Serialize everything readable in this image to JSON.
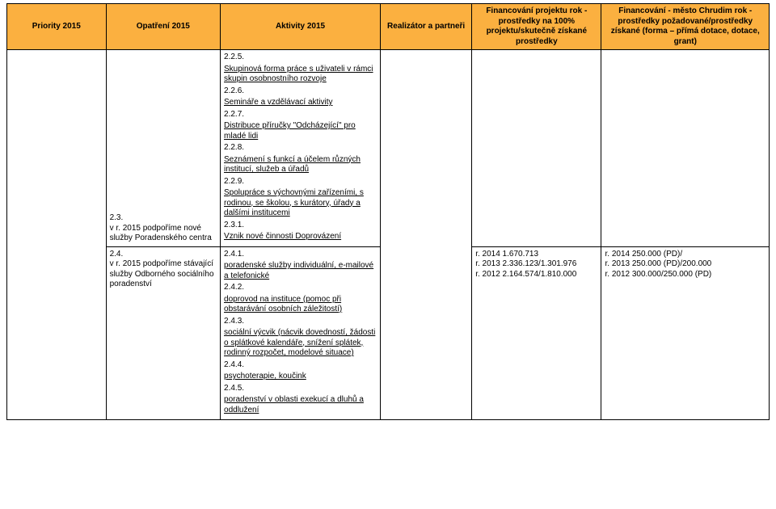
{
  "header": {
    "bg": "#fbb040",
    "cols": [
      "Priority 2015",
      "Opatření 2015",
      "Aktivity 2015",
      "Realizátor a partneři",
      "Financování projektu rok - prostředky na 100% projektu/skutečně získané prostředky",
      "Financování - město Chrudim               rok - prostředky požadované/prostředky získané (forma – přímá dotace, dotace, grant)"
    ]
  },
  "activities": {
    "a225_num": "2.2.5.",
    "a225_txt": "Skupinová forma práce s uživateli v rámci skupin osobnostního rozvoje",
    "a226_num": "2.2.6.",
    "a226_txt": "Semináře a vzdělávací aktivity",
    "a227_num": "2.2.7.",
    "a227_txt": "Distribuce příručky \"Odcházející\" pro mladé lidi",
    "a228_num": "2.2.8.",
    "a228_txt": "Seznámení s funkcí a účelem různých institucí, služeb a úřadů",
    "a229_num": "2.2.9.",
    "a229_txt": "Spolupráce s výchovnými zařízeními, s rodinou, se školou, s kurátory, úřady a dalšími institucemi",
    "a231_num": "2.3.1.",
    "a231_txt": "Vznik nové činnosti Doprovázení",
    "a241_num": "2.4.1.",
    "a241_txt": "poradenské služby individuální, e-mailové a telefonické",
    "a242_num": "2.4.2.",
    "a242_txt": "doprovod na instituce (pomoc při obstarávání osobních záležitostí)",
    "a243_num": "2.4.3.",
    "a243_txt": "sociální výcvik (nácvik dovedností, žádosti o splátkové kalendáře, snížení splátek, rodinný rozpočet, modelové situace)",
    "a244_num": "2.4.4.",
    "a244_txt": "psychoterapie, koučink",
    "a245_num": "2.4.5.",
    "a245_txt": "poradenství v oblasti exekucí a dluhů a oddlužení"
  },
  "measures": {
    "m23_num": "2.3.",
    "m23_txt": "v r. 2015 podpoříme nové služby Poradenského centra",
    "m24_num": "2.4.",
    "m24_txt": "v r. 2015 podpoříme stávající služby Odborného sociálního poradenství"
  },
  "financing_left": {
    "l1": "r. 2014  1.670.713",
    "l2": "r. 2013  2.336.123/1.301.976",
    "l3": "r. 2012  2.164.574/1.810.000"
  },
  "financing_right": {
    "r1": "r. 2014  250.000 (PD)/",
    "r2": "r. 2013  250.000 (PD)/200.000",
    "r3": "r. 2012  300.000/250.000 (PD)"
  }
}
